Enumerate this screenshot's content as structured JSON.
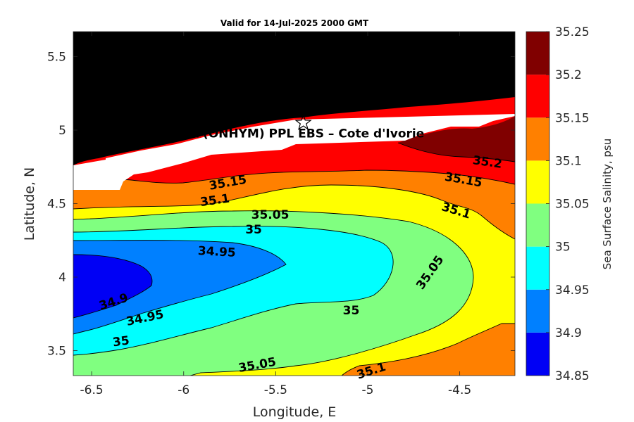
{
  "chart_data": {
    "type": "filled-contour",
    "title": "Valid for 14-Jul-2025 2000 GMT",
    "xlabel": "Longitude, E",
    "ylabel": "Latitude, N",
    "xlim": [
      -6.6,
      -4.2
    ],
    "ylim": [
      3.33,
      5.67
    ],
    "xticks": [
      -6.5,
      -6,
      -5.5,
      -5,
      -4.5
    ],
    "xtick_labels": [
      "-6.5",
      "-6",
      "-5.5",
      "-5",
      "-4.5"
    ],
    "yticks": [
      3.5,
      4,
      4.5,
      5,
      5.5
    ],
    "ytick_labels": [
      "3.5",
      "4",
      "4.5",
      "5",
      "5.5"
    ],
    "colorbar": {
      "label": "Sea Surface Salinity, psu",
      "levels": [
        34.85,
        34.9,
        34.95,
        35.0,
        35.05,
        35.1,
        35.15,
        35.2,
        35.25
      ],
      "level_labels": [
        "34.85",
        "34.9",
        "34.95",
        "35",
        "35.05",
        "35.1",
        "35.15",
        "35.2",
        "35.25"
      ],
      "colors": [
        "#0000f5",
        "#0080ff",
        "#00ffff",
        "#80ff80",
        "#ffff00",
        "#ff8000",
        "#ff0000",
        "#800000"
      ]
    },
    "land_color": "#000000",
    "nodata_color": "#ffffff",
    "contour_labels": [
      {
        "text": "34.9",
        "lon": -6.38,
        "lat": 3.83,
        "rotation": -18
      },
      {
        "text": "34.95",
        "lon": -6.21,
        "lat": 3.72,
        "rotation": -12
      },
      {
        "text": "35",
        "lon": -6.34,
        "lat": 3.56,
        "rotation": -8
      },
      {
        "text": "34.95",
        "lon": -5.82,
        "lat": 4.17,
        "rotation": 3
      },
      {
        "text": "35",
        "lon": -5.62,
        "lat": 4.32,
        "rotation": 0
      },
      {
        "text": "35",
        "lon": -5.09,
        "lat": 3.77,
        "rotation": 0
      },
      {
        "text": "35.05",
        "lon": -5.53,
        "lat": 4.42,
        "rotation": 0
      },
      {
        "text": "35.05",
        "lon": -5.6,
        "lat": 3.4,
        "rotation": -10
      },
      {
        "text": "35.05",
        "lon": -4.66,
        "lat": 4.03,
        "rotation": -55
      },
      {
        "text": "35.1",
        "lon": -5.83,
        "lat": 4.52,
        "rotation": -8
      },
      {
        "text": "35.1",
        "lon": -4.52,
        "lat": 4.45,
        "rotation": 17
      },
      {
        "text": "35.1",
        "lon": -4.98,
        "lat": 3.36,
        "rotation": -18
      },
      {
        "text": "35.15",
        "lon": -5.76,
        "lat": 4.64,
        "rotation": -10
      },
      {
        "text": "35.15",
        "lon": -4.48,
        "lat": 4.66,
        "rotation": 10
      },
      {
        "text": "35.2",
        "lon": -4.35,
        "lat": 4.78,
        "rotation": 8
      }
    ],
    "station": {
      "label": "A (ONHYM) PPL EBS  – Cote d'Ivorie",
      "lon": -5.35,
      "lat": 5.05,
      "marker": "star"
    }
  }
}
